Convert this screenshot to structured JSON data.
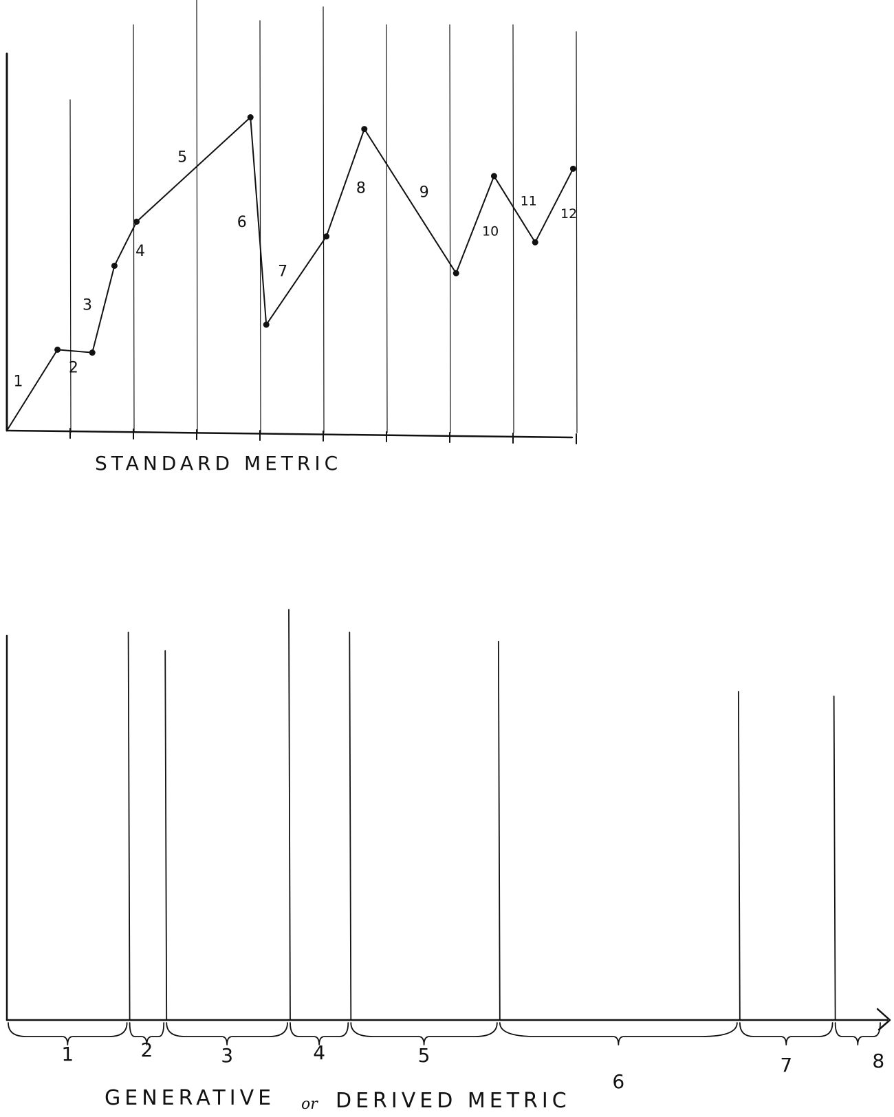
{
  "standard_metric": {
    "caption": "STANDARD METRIC",
    "segments": [
      {
        "label": "1",
        "from": [
          0,
          0
        ],
        "to": [
          0.8,
          0.55
        ]
      },
      {
        "label": "2",
        "from": [
          0.8,
          0.55
        ],
        "to": [
          1.35,
          0.53
        ]
      },
      {
        "label": "3",
        "from": [
          1.35,
          0.53
        ],
        "to": [
          1.7,
          1.12
        ]
      },
      {
        "label": "4",
        "from": [
          1.7,
          1.12
        ],
        "to": [
          2.05,
          1.42
        ]
      },
      {
        "label": "5",
        "from": [
          2.05,
          1.42
        ],
        "to": [
          3.85,
          2.13
        ]
      },
      {
        "label": "6",
        "from": [
          3.85,
          2.13
        ],
        "to": [
          4.1,
          0.72
        ]
      },
      {
        "label": "7",
        "from": [
          4.1,
          0.72
        ],
        "to": [
          5.05,
          1.32
        ]
      },
      {
        "label": "8",
        "from": [
          5.05,
          1.32
        ],
        "to": [
          5.65,
          2.05
        ]
      },
      {
        "label": "9",
        "from": [
          5.65,
          2.05
        ],
        "to": [
          7.1,
          1.07
        ]
      },
      {
        "label": "10",
        "from": [
          7.1,
          1.07
        ],
        "to": [
          7.7,
          1.73
        ]
      },
      {
        "label": "11",
        "from": [
          7.7,
          1.73
        ],
        "to": [
          8.35,
          1.28
        ]
      },
      {
        "label": "12",
        "from": [
          8.35,
          1.28
        ],
        "to": [
          8.95,
          1.78
        ]
      }
    ],
    "x_ticks": [
      1,
      2,
      3,
      4,
      5,
      6,
      7,
      8,
      9
    ],
    "y_max": 2.6
  },
  "derived_metric": {
    "caption_start": "GENERATIVE",
    "caption_or": "or",
    "caption_end": "DERIVED METRIC",
    "event_lines": [
      {
        "x": 1.68,
        "height": 0.85
      },
      {
        "x": 2.19,
        "height": 0.81
      },
      {
        "x": 3.9,
        "height": 0.9
      },
      {
        "x": 4.74,
        "height": 0.85
      },
      {
        "x": 6.8,
        "height": 0.83
      },
      {
        "x": 10.12,
        "height": 0.72
      },
      {
        "x": 11.44,
        "height": 0.71
      }
    ],
    "intervals": [
      {
        "label": "1",
        "from": 0,
        "to": 1.68
      },
      {
        "label": "2",
        "from": 1.68,
        "to": 2.19
      },
      {
        "label": "3",
        "from": 2.19,
        "to": 3.9
      },
      {
        "label": "4",
        "from": 3.9,
        "to": 4.74
      },
      {
        "label": "5",
        "from": 4.74,
        "to": 6.8
      },
      {
        "label": "6",
        "from": 6.8,
        "to": 10.12
      },
      {
        "label": "7",
        "from": 10.12,
        "to": 11.44
      },
      {
        "label": "8",
        "from": 11.44,
        "to": 12.1
      }
    ],
    "x_max": 12.1
  }
}
